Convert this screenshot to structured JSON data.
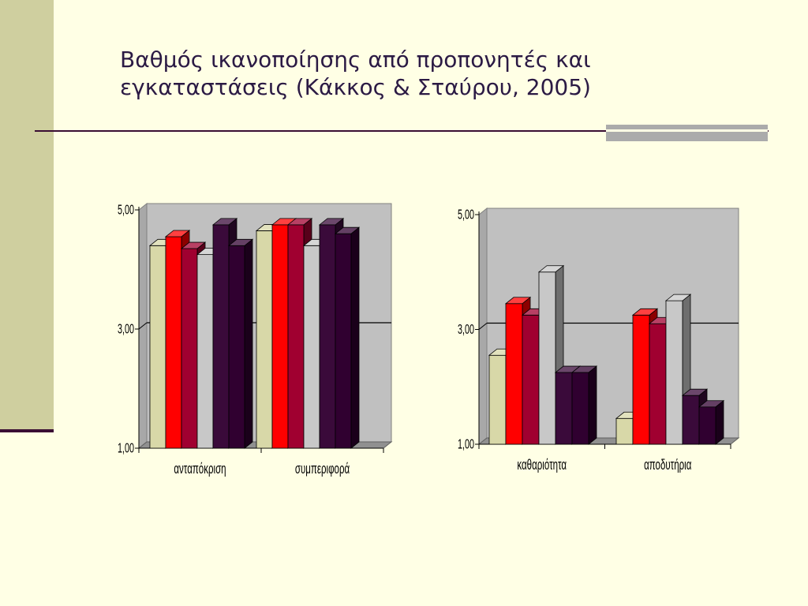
{
  "title_lines": [
    "Βαθμός ικανοποίησης από προπονητές και",
    "εγκαταστάσεις (Κάκκος & Σταύρου, 2005)"
  ],
  "colors": {
    "background": "#FFFFE5",
    "band": "#CFCF9F",
    "rule": "#3A0E33",
    "plot_wall": "#C0C0C0",
    "series": [
      "#D8D8A8",
      "#FF0000",
      "#A00030",
      "#C8C8C8",
      "#3A0A3A",
      "#300030"
    ]
  },
  "chart_data": [
    {
      "type": "bar",
      "categories": [
        "ανταπόκριση",
        "συμπεριφορά"
      ],
      "series": [
        {
          "values": [
            4.4,
            4.65
          ]
        },
        {
          "values": [
            4.55,
            4.75
          ]
        },
        {
          "values": [
            4.35,
            4.75
          ]
        },
        {
          "values": [
            4.25,
            4.4
          ]
        },
        {
          "values": [
            4.75,
            4.75
          ]
        },
        {
          "values": [
            4.4,
            4.6
          ]
        }
      ],
      "ylim": [
        1,
        5
      ],
      "yticks": [
        "1,00",
        "3,00",
        "5,00"
      ],
      "grid": "y-major"
    },
    {
      "type": "bar",
      "categories": [
        "καθαριότητα",
        "αποδυτήρια"
      ],
      "series": [
        {
          "values": [
            2.55,
            1.45
          ]
        },
        {
          "values": [
            3.45,
            3.25
          ]
        },
        {
          "values": [
            3.25,
            3.1
          ]
        },
        {
          "values": [
            4.0,
            3.5
          ]
        },
        {
          "values": [
            2.25,
            1.85
          ]
        },
        {
          "values": [
            2.25,
            1.65
          ]
        }
      ],
      "ylim": [
        1,
        5
      ],
      "yticks": [
        "1,00",
        "3,00",
        "5,00"
      ],
      "grid": "y-major"
    }
  ]
}
